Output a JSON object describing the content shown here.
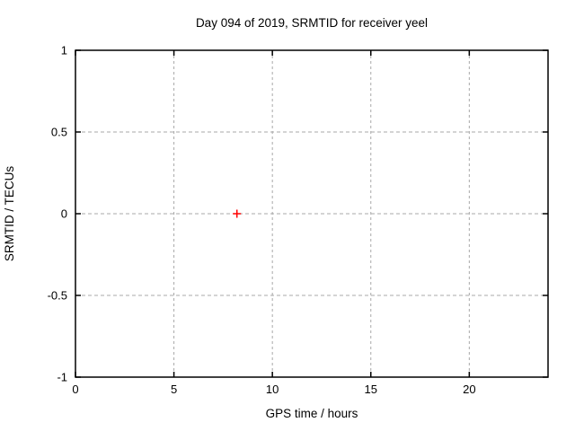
{
  "chart_data": {
    "type": "scatter",
    "title": "Day 094 of 2019, SRMTID for receiver yeel",
    "xlabel": "GPS time / hours",
    "ylabel": "SRMTID / TECUs",
    "xlim": [
      0,
      24
    ],
    "ylim": [
      -1,
      1
    ],
    "xticks": [
      0,
      5,
      10,
      15,
      20
    ],
    "xtick_labels": [
      "0",
      "5",
      "10",
      "15",
      "20"
    ],
    "yticks": [
      -1,
      -0.5,
      0,
      0.5,
      1
    ],
    "ytick_labels": [
      "-1",
      "-0.5",
      "0",
      "0.5",
      "1"
    ],
    "grid": true,
    "legend": "none",
    "series": [
      {
        "name": "SRMTID",
        "marker": "plus",
        "color": "#ff0000",
        "points": [
          {
            "x": 8.2,
            "y": 0
          }
        ]
      }
    ],
    "colors": {
      "axis": "#000000",
      "grid": "#a8a8a8",
      "background": "#ffffff",
      "marker": "#ff0000"
    }
  }
}
